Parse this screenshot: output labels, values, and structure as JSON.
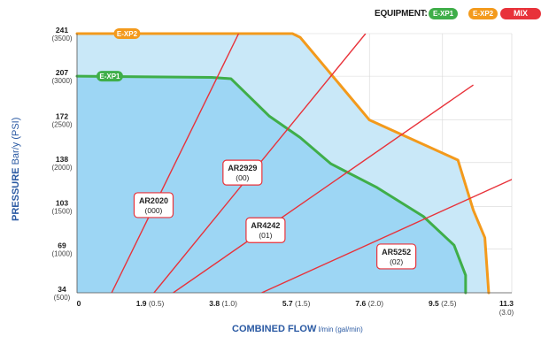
{
  "legend": {
    "title": "EQUIPMENT:",
    "items": [
      {
        "label": "E-XP1",
        "color": "#3fae49"
      },
      {
        "label": "E-XP2",
        "color": "#f39a1c"
      }
    ],
    "mix_label": "MIX CHAMBERS",
    "mix_color": "#e8323a"
  },
  "axes": {
    "y_label_bold": "PRESSURE",
    "y_label_rest": " Bar/y (PSI)",
    "x_label_bold": "COMBINED FLOW",
    "x_label_rest": " l/min (gal/min)"
  },
  "chart_data": {
    "type": "area",
    "xlim": [
      0,
      11.3
    ],
    "ylim": [
      34,
      241
    ],
    "x_ticks": [
      {
        "v": 0,
        "main": "0",
        "sub": ""
      },
      {
        "v": 1.9,
        "main": "1.9",
        "sub": "(0.5)"
      },
      {
        "v": 3.8,
        "main": "3.8",
        "sub": "(1.0)"
      },
      {
        "v": 5.7,
        "main": "5.7",
        "sub": "(1.5)"
      },
      {
        "v": 7.6,
        "main": "7.6",
        "sub": "(2.0)"
      },
      {
        "v": 9.5,
        "main": "9.5",
        "sub": "(2.5)"
      },
      {
        "v": 11.3,
        "main": "11.3",
        "sub": "(3.0)"
      }
    ],
    "y_ticks": [
      {
        "v": 34,
        "main": "34",
        "sub": "(500)"
      },
      {
        "v": 69,
        "main": "69",
        "sub": "(1000)"
      },
      {
        "v": 103,
        "main": "103",
        "sub": "(1500)"
      },
      {
        "v": 138,
        "main": "138",
        "sub": "(2000)"
      },
      {
        "v": 172,
        "main": "172",
        "sub": "(2500)"
      },
      {
        "v": 207,
        "main": "207",
        "sub": "(3000)"
      },
      {
        "v": 241,
        "main": "241",
        "sub": "(3500)"
      }
    ],
    "series": [
      {
        "name": "E-XP2",
        "color": "#f39a1c",
        "fill": "#c9e8f8",
        "points": [
          [
            0,
            241
          ],
          [
            5.6,
            241
          ],
          [
            5.8,
            238
          ],
          [
            7.6,
            172
          ],
          [
            9.9,
            140
          ],
          [
            10.3,
            100
          ],
          [
            10.6,
            78
          ],
          [
            10.7,
            34
          ]
        ]
      },
      {
        "name": "E-XP1",
        "color": "#3fae49",
        "fill": "#9dd6f4",
        "points": [
          [
            0,
            207
          ],
          [
            3.5,
            206
          ],
          [
            4.0,
            205
          ],
          [
            5.0,
            175
          ],
          [
            5.8,
            158
          ],
          [
            6.6,
            137
          ],
          [
            7.8,
            118
          ],
          [
            9.0,
            95
          ],
          [
            9.8,
            72
          ],
          [
            10.1,
            48
          ],
          [
            10.1,
            34
          ]
        ]
      }
    ],
    "mix_chambers": [
      {
        "label": "AR2020",
        "code": "(000)",
        "color": "#e8323a",
        "line": [
          [
            0.9,
            34
          ],
          [
            4.2,
            241
          ]
        ],
        "label_at": [
          1.99,
          104
        ]
      },
      {
        "label": "AR2929",
        "code": "(00)",
        "color": "#e8323a",
        "line": [
          [
            2.0,
            34
          ],
          [
            7.5,
            241
          ]
        ],
        "label_at": [
          4.3,
          130
        ]
      },
      {
        "label": "AR4242",
        "code": "(01)",
        "color": "#e8323a",
        "line": [
          [
            2.5,
            34
          ],
          [
            10.3,
            200
          ]
        ],
        "label_at": [
          4.9,
          84
        ]
      },
      {
        "label": "AR5252",
        "code": "(02)",
        "color": "#e8323a",
        "line": [
          [
            4.8,
            34
          ],
          [
            16.0,
            190
          ]
        ],
        "label_at": [
          8.3,
          63
        ]
      }
    ]
  }
}
